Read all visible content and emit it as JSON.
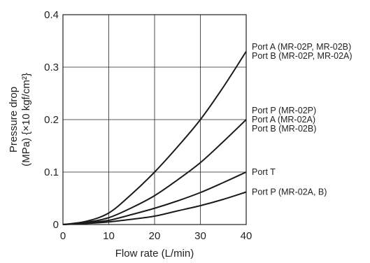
{
  "chart_data": {
    "type": "line",
    "title": "",
    "xlabel": "Flow rate (L/min)",
    "ylabel_line1": "Pressure drop",
    "ylabel_line2": "(MPa) {×10 kgf/cm²}",
    "xlim": [
      0,
      40
    ],
    "ylim": [
      0,
      0.4
    ],
    "x_ticks": [
      "0",
      "10",
      "20",
      "30",
      "40"
    ],
    "y_ticks": [
      "0",
      "0.1",
      "0.2",
      "0.3",
      "0.4"
    ],
    "grid": true,
    "legend_placement": "right",
    "series": [
      {
        "name": "Port A (MR-02P, MR-02B) / Port B (MR-02P, MR-02A)",
        "x": [
          0,
          5,
          10,
          15,
          20,
          25,
          30,
          35,
          40
        ],
        "y": [
          0,
          0.006,
          0.022,
          0.058,
          0.1,
          0.148,
          0.2,
          0.262,
          0.33
        ]
      },
      {
        "name": "Port P (MR-02P) / Port A (MR-02A) / Port B (MR-02B)",
        "x": [
          0,
          5,
          10,
          15,
          20,
          25,
          30,
          35,
          40
        ],
        "y": [
          0,
          0.004,
          0.013,
          0.032,
          0.055,
          0.085,
          0.118,
          0.158,
          0.2
        ]
      },
      {
        "name": "Port T",
        "x": [
          0,
          5,
          10,
          15,
          20,
          25,
          30,
          35,
          40
        ],
        "y": [
          0,
          0.003,
          0.008,
          0.019,
          0.031,
          0.045,
          0.061,
          0.08,
          0.1
        ]
      },
      {
        "name": "Port P (MR-02A, B)",
        "x": [
          0,
          5,
          10,
          15,
          20,
          25,
          30,
          35,
          40
        ],
        "y": [
          0,
          0.002,
          0.005,
          0.01,
          0.016,
          0.026,
          0.036,
          0.048,
          0.062
        ]
      }
    ],
    "legend_labels": [
      {
        "lines": [
          "Port A (MR-02P, MR-02B)",
          "Port B (MR-02P, MR-02A)"
        ],
        "anchor_y": 0.33
      },
      {
        "lines": [
          "Port P (MR-02P)",
          "Port A (MR-02A)",
          "Port B (MR-02B)"
        ],
        "anchor_y": 0.2
      },
      {
        "lines": [
          "Port T"
        ],
        "anchor_y": 0.1
      },
      {
        "lines": [
          "Port P (MR-02A, B)"
        ],
        "anchor_y": 0.062
      }
    ]
  }
}
